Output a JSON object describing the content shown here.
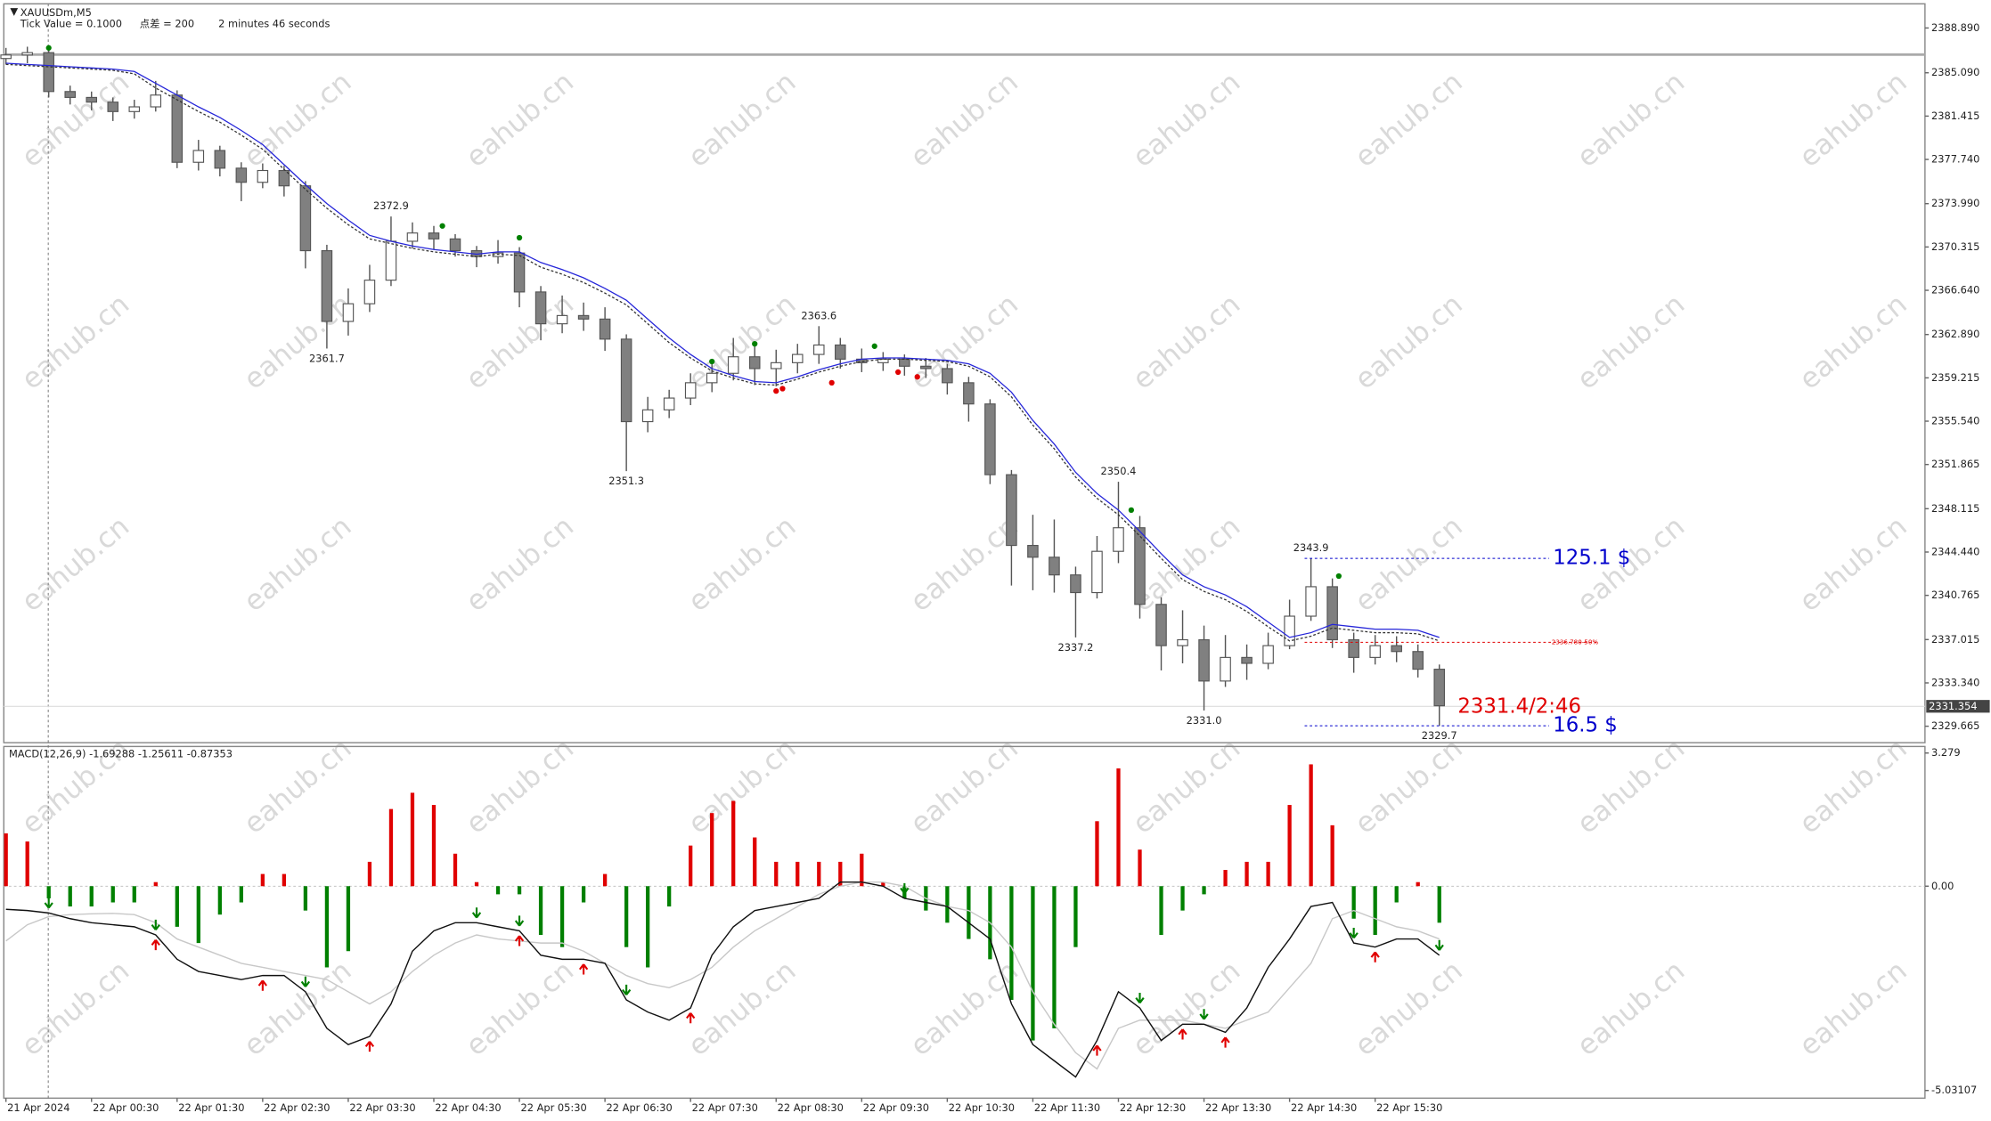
{
  "header": {
    "symbol": "XAUUSDm,M5",
    "tick_value": "Tick Value = 0.1000",
    "spread": "点差 = 200",
    "timer": "2 minutes 46 seconds"
  },
  "watermark": "eahub.cn",
  "chart_data": [
    {
      "type": "candlestick",
      "open": [
        2386.3,
        2386.6,
        2386.8,
        2383.5,
        2383.0,
        2382.6,
        2381.8,
        2382.2,
        2383.2,
        2377.5,
        2378.5,
        2377.0,
        2375.8,
        2376.8,
        2375.5,
        2370.0,
        2364.0,
        2365.5,
        2367.5,
        2370.8,
        2371.5,
        2371.0,
        2370.0,
        2369.5,
        2369.8,
        2366.5,
        2363.8,
        2364.5,
        2364.2,
        2362.5,
        2355.5,
        2356.5,
        2357.5,
        2358.8,
        2359.6,
        2361.0,
        2360.0,
        2360.5,
        2361.2,
        2362.0,
        2360.8,
        2360.5,
        2360.8,
        2360.2,
        2360.0,
        2358.8,
        2357.0,
        2351.0,
        2345.0,
        2344.0,
        2342.5,
        2341.0,
        2344.5,
        2346.5,
        2340.0,
        2336.5,
        2337.0,
        2333.5,
        2335.5,
        2335.0,
        2336.5,
        2339.0,
        2341.5,
        2337.0,
        2335.5,
        2336.5,
        2336.0,
        2334.5
      ],
      "high": [
        2387.2,
        2387.3,
        2387.4,
        2384.0,
        2383.5,
        2383.0,
        2382.8,
        2384.4,
        2383.6,
        2379.4,
        2378.9,
        2377.5,
        2377.4,
        2377.2,
        2375.9,
        2370.5,
        2366.8,
        2368.8,
        2372.9,
        2372.4,
        2372.1,
        2371.4,
        2370.4,
        2370.9,
        2370.3,
        2367.0,
        2366.2,
        2365.6,
        2365.2,
        2362.9,
        2357.6,
        2358.2,
        2359.6,
        2360.6,
        2362.6,
        2362.0,
        2361.6,
        2362.1,
        2363.6,
        2362.6,
        2361.7,
        2361.4,
        2361.2,
        2360.9,
        2360.4,
        2359.3,
        2357.4,
        2351.4,
        2347.6,
        2347.2,
        2343.2,
        2345.8,
        2350.4,
        2347.5,
        2340.6,
        2339.5,
        2338.2,
        2337.4,
        2336.6,
        2337.6,
        2340.4,
        2343.9,
        2342.2,
        2337.6,
        2337.4,
        2337.3,
        2336.6,
        2334.9
      ],
      "low": [
        2385.8,
        2385.9,
        2383.0,
        2382.4,
        2381.9,
        2381.0,
        2381.2,
        2381.8,
        2377.0,
        2376.8,
        2376.3,
        2374.2,
        2375.3,
        2374.6,
        2368.5,
        2361.7,
        2362.8,
        2364.8,
        2367.0,
        2370.2,
        2370.1,
        2369.5,
        2368.6,
        2368.9,
        2365.2,
        2362.4,
        2363.0,
        2363.2,
        2361.5,
        2351.3,
        2354.6,
        2355.8,
        2356.9,
        2358.0,
        2359.0,
        2358.6,
        2358.5,
        2359.6,
        2360.4,
        2360.0,
        2359.7,
        2359.8,
        2359.4,
        2359.2,
        2357.8,
        2355.5,
        2350.2,
        2341.6,
        2341.2,
        2341.0,
        2337.2,
        2340.5,
        2343.5,
        2338.8,
        2334.4,
        2335.0,
        2331.0,
        2333.0,
        2333.6,
        2334.5,
        2336.2,
        2338.6,
        2336.3,
        2334.2,
        2334.9,
        2335.1,
        2333.8,
        2329.7
      ],
      "close": [
        2386.6,
        2386.8,
        2383.5,
        2383.0,
        2382.6,
        2381.8,
        2382.2,
        2383.2,
        2377.5,
        2378.5,
        2377.0,
        2375.8,
        2376.8,
        2375.5,
        2370.0,
        2364.0,
        2365.5,
        2367.5,
        2370.8,
        2371.5,
        2371.0,
        2370.0,
        2369.5,
        2369.8,
        2366.5,
        2363.8,
        2364.5,
        2364.2,
        2362.5,
        2355.5,
        2356.5,
        2357.5,
        2358.8,
        2359.6,
        2361.0,
        2360.0,
        2360.5,
        2361.2,
        2362.0,
        2360.8,
        2360.5,
        2360.8,
        2360.2,
        2360.0,
        2358.8,
        2357.0,
        2351.0,
        2345.0,
        2344.0,
        2342.5,
        2341.0,
        2344.5,
        2346.5,
        2340.0,
        2336.5,
        2337.0,
        2333.5,
        2335.5,
        2335.0,
        2336.5,
        2339.0,
        2341.5,
        2337.0,
        2335.5,
        2336.5,
        2336.0,
        2334.5,
        2331.4
      ],
      "lines": [
        {
          "color": "#2626d9",
          "style": "solid",
          "values": [
            2385.9,
            2385.8,
            2385.7,
            2385.6,
            2385.5,
            2385.4,
            2385.2,
            2384.2,
            2383.2,
            2382.2,
            2381.3,
            2380.2,
            2379.0,
            2377.3,
            2375.6,
            2374.0,
            2372.6,
            2371.3,
            2370.8,
            2370.4,
            2370.1,
            2369.9,
            2369.7,
            2369.9,
            2369.9,
            2369.0,
            2368.4,
            2367.7,
            2366.8,
            2365.8,
            2364.2,
            2362.6,
            2361.2,
            2360.0,
            2359.4,
            2358.9,
            2358.8,
            2359.3,
            2359.9,
            2360.4,
            2360.8,
            2360.9,
            2360.9,
            2360.8,
            2360.7,
            2360.4,
            2359.6,
            2358.0,
            2355.6,
            2353.6,
            2351.2,
            2349.4,
            2348.0,
            2346.2,
            2344.3,
            2342.5,
            2341.5,
            2340.8,
            2339.8,
            2338.5,
            2337.2,
            2337.6,
            2338.3,
            2338.1,
            2337.9,
            2337.9,
            2337.8,
            2337.2
          ]
        },
        {
          "color": "#333333",
          "style": "dotted",
          "values": [
            2385.8,
            2385.7,
            2385.6,
            2385.5,
            2385.4,
            2385.3,
            2385.0,
            2383.8,
            2382.8,
            2381.8,
            2380.9,
            2379.8,
            2378.6,
            2376.9,
            2375.2,
            2373.6,
            2372.2,
            2371.0,
            2370.6,
            2370.2,
            2369.9,
            2369.7,
            2369.5,
            2369.7,
            2369.6,
            2368.6,
            2368.0,
            2367.3,
            2366.4,
            2365.4,
            2363.8,
            2362.2,
            2360.9,
            2359.8,
            2359.2,
            2358.7,
            2358.6,
            2359.1,
            2359.7,
            2360.2,
            2360.6,
            2360.8,
            2360.8,
            2360.7,
            2360.6,
            2360.2,
            2359.3,
            2357.6,
            2355.2,
            2353.2,
            2350.8,
            2349.0,
            2347.6,
            2345.8,
            2343.9,
            2342.1,
            2341.1,
            2340.4,
            2339.4,
            2338.1,
            2336.9,
            2337.3,
            2338.0,
            2337.8,
            2337.6,
            2337.6,
            2337.5,
            2336.9
          ]
        }
      ],
      "dots": [
        {
          "color": "#008000",
          "x": [
            2.0,
            20.4,
            24.0,
            33.0,
            35.0,
            40.6,
            52.6,
            62.3
          ],
          "y": [
            2387.2,
            2372.1,
            2371.1,
            2360.6,
            2362.1,
            2361.9,
            2348.0,
            2342.4
          ]
        },
        {
          "color": "#e00000",
          "x": [
            36.0,
            36.3,
            38.6,
            41.7,
            42.6
          ],
          "y": [
            2358.1,
            2358.3,
            2358.8,
            2359.7,
            2359.3
          ]
        }
      ],
      "annotations": [
        {
          "candle": 18,
          "at": "high",
          "label": "2372.9"
        },
        {
          "candle": 15,
          "at": "low",
          "label": "2361.7"
        },
        {
          "candle": 29,
          "at": "low",
          "label": "2351.3"
        },
        {
          "candle": 38,
          "at": "high",
          "label": "2363.6"
        },
        {
          "candle": 52,
          "at": "high",
          "label": "2350.4"
        },
        {
          "candle": 50,
          "at": "low",
          "label": "2337.2"
        },
        {
          "candle": 56,
          "at": "low",
          "label": "2331.0"
        },
        {
          "candle": 61,
          "at": "high",
          "label": "2343.9"
        },
        {
          "candle": 67,
          "at": "low",
          "label": "2329.7"
        }
      ],
      "levels": [
        {
          "value": 2343.9,
          "label": "125.1 $",
          "color": "#0000cc"
        },
        {
          "value": 2336.78,
          "label": "2336.780-50%",
          "color": "#e00000"
        },
        {
          "value": 2329.7,
          "label": "16.5 $",
          "color": "#0000cc"
        }
      ],
      "current": {
        "value": 2331.354,
        "label": "2331.354"
      },
      "countdown": "2331.4/2:46",
      "xlim": [
        -0.1,
        89.7
      ],
      "ylim": [
        2328.27,
        2390.94
      ],
      "yticks": [
        {
          "value": 2388.89,
          "label": "2388.890"
        },
        {
          "value": 2385.09,
          "label": "2385.090"
        },
        {
          "value": 2381.415,
          "label": "2381.415"
        },
        {
          "value": 2377.74,
          "label": "2377.740"
        },
        {
          "value": 2373.99,
          "label": "2373.990"
        },
        {
          "value": 2370.315,
          "label": "2370.315"
        },
        {
          "value": 2366.64,
          "label": "2366.640"
        },
        {
          "value": 2362.89,
          "label": "2362.890"
        },
        {
          "value": 2359.215,
          "label": "2359.215"
        },
        {
          "value": 2355.54,
          "label": "2355.540"
        },
        {
          "value": 2351.865,
          "label": "2351.865"
        },
        {
          "value": 2348.115,
          "label": "2348.115"
        },
        {
          "value": 2344.44,
          "label": "2344.440"
        },
        {
          "value": 2340.765,
          "label": "2340.765"
        },
        {
          "value": 2337.015,
          "label": "2337.015"
        },
        {
          "value": 2333.34,
          "label": "2333.340"
        },
        {
          "value": 2329.665,
          "label": "2329.665"
        }
      ]
    },
    {
      "type": "macd",
      "title": "MACD(12,26,9) -1.69288 -1.25611 -0.87353",
      "histogram": [
        1.3,
        1.1,
        -0.3,
        -0.5,
        -0.5,
        -0.4,
        -0.4,
        0.1,
        -1.0,
        -1.4,
        -0.7,
        -0.4,
        0.3,
        0.3,
        -0.6,
        -2.0,
        -1.6,
        0.6,
        1.9,
        2.3,
        2.0,
        0.8,
        0.1,
        -0.2,
        -0.2,
        -1.2,
        -1.5,
        -0.4,
        0.3,
        -1.5,
        -2.0,
        -0.5,
        1.0,
        1.8,
        2.1,
        1.2,
        0.6,
        0.6,
        0.6,
        0.6,
        0.8,
        0.1,
        -0.3,
        -0.6,
        -0.9,
        -1.3,
        -1.8,
        -2.8,
        -3.8,
        -3.5,
        -1.5,
        1.6,
        2.9,
        0.9,
        -1.2,
        -0.6,
        -0.2,
        0.4,
        0.6,
        0.6,
        2.0,
        3.0,
        1.5,
        -0.8,
        -1.2,
        -0.4,
        0.1,
        -0.9
      ],
      "positive_color": "#e00000",
      "negative_color": "#008000",
      "macd": [
        -0.57,
        -0.6,
        -0.66,
        -0.8,
        -0.9,
        -0.95,
        -1.0,
        -1.2,
        -1.8,
        -2.1,
        -2.2,
        -2.3,
        -2.2,
        -2.2,
        -2.6,
        -3.5,
        -3.9,
        -3.7,
        -2.9,
        -1.6,
        -1.1,
        -0.9,
        -0.9,
        -1.0,
        -1.1,
        -1.7,
        -1.8,
        -1.8,
        -1.9,
        -2.8,
        -3.1,
        -3.3,
        -3.0,
        -1.7,
        -1.0,
        -0.6,
        -0.5,
        -0.4,
        -0.3,
        0.1,
        0.1,
        0.0,
        -0.3,
        -0.4,
        -0.5,
        -0.9,
        -1.3,
        -2.9,
        -3.9,
        -4.3,
        -4.7,
        -3.8,
        -2.6,
        -3.0,
        -3.8,
        -3.4,
        -3.4,
        -3.6,
        -3.0,
        -2.0,
        -1.3,
        -0.5,
        -0.4,
        -1.4,
        -1.5,
        -1.3,
        -1.3,
        -1.7
      ],
      "macd_color": "#111111",
      "signal": [
        -1.35,
        -0.95,
        -0.75,
        -0.7,
        -0.68,
        -0.67,
        -0.7,
        -0.9,
        -1.3,
        -1.5,
        -1.7,
        -1.9,
        -2.0,
        -2.1,
        -2.2,
        -2.3,
        -2.6,
        -2.9,
        -2.6,
        -2.1,
        -1.7,
        -1.4,
        -1.2,
        -1.3,
        -1.35,
        -1.4,
        -1.4,
        -1.6,
        -1.9,
        -2.2,
        -2.4,
        -2.5,
        -2.3,
        -2.0,
        -1.5,
        -1.1,
        -0.8,
        -0.5,
        -0.2,
        0.0,
        0.1,
        0.1,
        0.0,
        -0.3,
        -0.5,
        -0.6,
        -0.9,
        -1.5,
        -2.6,
        -3.4,
        -4.1,
        -4.5,
        -3.5,
        -3.3,
        -3.3,
        -3.3,
        -3.4,
        -3.5,
        -3.3,
        -3.1,
        -2.5,
        -1.9,
        -0.8,
        -0.6,
        -0.8,
        -1.0,
        -1.1,
        -1.3
      ],
      "signal_color": "#c8c8c8",
      "arrows": {
        "up": {
          "color": "#e00000",
          "at": [
            7,
            12,
            17,
            24,
            27,
            32,
            51,
            55,
            57,
            64
          ]
        },
        "down": {
          "color": "#008000",
          "at": [
            2,
            7,
            14,
            22,
            24,
            29,
            42,
            53,
            56,
            63,
            67
          ]
        }
      },
      "xlim": [
        -0.1,
        89.7
      ],
      "ylim": [
        -5.22,
        3.44
      ],
      "yticks": [
        3.279,
        {
          "value": 0,
          "label": "0.00"
        },
        -5.03107
      ],
      "xticks": [
        {
          "value": 0,
          "label": "21 Apr 2024"
        },
        {
          "value": 4,
          "label": "22 Apr 00:30"
        },
        {
          "value": 8,
          "label": "22 Apr 01:30"
        },
        {
          "value": 12,
          "label": "22 Apr 02:30"
        },
        {
          "value": 16,
          "label": "22 Apr 03:30"
        },
        {
          "value": 20,
          "label": "22 Apr 04:30"
        },
        {
          "value": 24,
          "label": "22 Apr 05:30"
        },
        {
          "value": 28,
          "label": "22 Apr 06:30"
        },
        {
          "value": 32,
          "label": "22 Apr 07:30"
        },
        {
          "value": 36,
          "label": "22 Apr 08:30"
        },
        {
          "value": 40,
          "label": "22 Apr 09:30"
        },
        {
          "value": 44,
          "label": "22 Apr 10:30"
        },
        {
          "value": 48,
          "label": "22 Apr 11:30"
        },
        {
          "value": 52,
          "label": "22 Apr 12:30"
        },
        {
          "value": 56,
          "label": "22 Apr 13:30"
        },
        {
          "value": 60,
          "label": "22 Apr 14:30"
        },
        {
          "value": 64,
          "label": "22 Apr 15:30"
        }
      ]
    }
  ]
}
